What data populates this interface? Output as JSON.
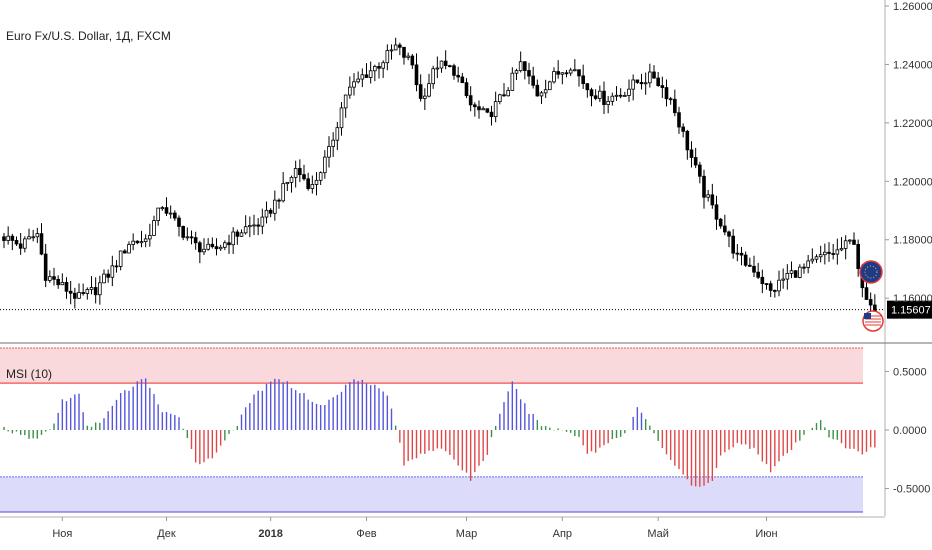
{
  "chart_data": [
    {
      "type": "candlestick",
      "title": "Euro Fx/U.S. Dollar, 1Д, FXCM",
      "ylim": [
        1.145,
        1.26
      ],
      "y_ticks": [
        "1.26000",
        "1.24000",
        "1.22000",
        "1.20000",
        "1.18000",
        "1.16000"
      ],
      "y_tick_values": [
        1.26,
        1.24,
        1.22,
        1.2,
        1.18,
        1.16
      ],
      "last_price": "1.15607",
      "last_price_value": 1.15607,
      "close_path": [
        [
          0,
          1.181
        ],
        [
          4,
          1.178
        ],
        [
          8,
          1.182
        ],
        [
          10,
          1.168
        ],
        [
          14,
          1.164
        ],
        [
          18,
          1.16
        ],
        [
          22,
          1.163
        ],
        [
          26,
          1.17
        ],
        [
          30,
          1.179
        ],
        [
          34,
          1.18
        ],
        [
          38,
          1.192
        ],
        [
          42,
          1.184
        ],
        [
          46,
          1.178
        ],
        [
          50,
          1.176
        ],
        [
          54,
          1.18
        ],
        [
          58,
          1.184
        ],
        [
          62,
          1.186
        ],
        [
          66,
          1.195
        ],
        [
          70,
          1.204
        ],
        [
          74,
          1.198
        ],
        [
          78,
          1.21
        ],
        [
          82,
          1.23
        ],
        [
          86,
          1.236
        ],
        [
          90,
          1.24
        ],
        [
          94,
          1.246
        ],
        [
          98,
          1.24
        ],
        [
          100,
          1.228
        ],
        [
          104,
          1.24
        ],
        [
          108,
          1.238
        ],
        [
          112,
          1.226
        ],
        [
          116,
          1.222
        ],
        [
          120,
          1.23
        ],
        [
          124,
          1.24
        ],
        [
          128,
          1.23
        ],
        [
          132,
          1.236
        ],
        [
          136,
          1.24
        ],
        [
          140,
          1.232
        ],
        [
          144,
          1.228
        ],
        [
          148,
          1.23
        ],
        [
          152,
          1.234
        ],
        [
          156,
          1.236
        ],
        [
          160,
          1.228
        ],
        [
          164,
          1.212
        ],
        [
          168,
          1.196
        ],
        [
          172,
          1.186
        ],
        [
          176,
          1.174
        ],
        [
          180,
          1.17
        ],
        [
          184,
          1.162
        ],
        [
          188,
          1.168
        ],
        [
          192,
          1.17
        ],
        [
          196,
          1.174
        ],
        [
          200,
          1.176
        ],
        [
          204,
          1.18
        ],
        [
          206,
          1.162
        ],
        [
          208,
          1.156
        ]
      ]
    },
    {
      "type": "bar",
      "title": "MSI (10)",
      "ylim": [
        -0.7,
        0.7
      ],
      "y_ticks": [
        "0.5000",
        "0.0000",
        "-0.5000"
      ],
      "y_tick_values": [
        0.5,
        0.0,
        -0.5
      ],
      "bands": [
        {
          "from": 0.4,
          "to": 0.7,
          "color": "#f9d9dc",
          "line_color": "#ef5350"
        },
        {
          "from": -0.7,
          "to": -0.4,
          "color": "#dcdcfa",
          "line_color": "#6a6ae8"
        }
      ],
      "colors": {
        "positive_high": "#5555dd",
        "neutral": "#3a8f4a",
        "negative_high": "#e04848"
      },
      "thresholds": [
        0.1,
        -0.1
      ],
      "path": [
        [
          0,
          0.02
        ],
        [
          4,
          -0.05
        ],
        [
          8,
          -0.08
        ],
        [
          12,
          0.05
        ],
        [
          14,
          0.25
        ],
        [
          18,
          0.3
        ],
        [
          20,
          0.02
        ],
        [
          24,
          0.1
        ],
        [
          28,
          0.3
        ],
        [
          34,
          0.45
        ],
        [
          38,
          0.15
        ],
        [
          42,
          0.1
        ],
        [
          44,
          -0.05
        ],
        [
          46,
          -0.28
        ],
        [
          50,
          -0.25
        ],
        [
          52,
          -0.12
        ],
        [
          56,
          0.05
        ],
        [
          60,
          0.3
        ],
        [
          66,
          0.45
        ],
        [
          72,
          0.3
        ],
        [
          76,
          0.2
        ],
        [
          80,
          0.3
        ],
        [
          84,
          0.45
        ],
        [
          88,
          0.4
        ],
        [
          92,
          0.3
        ],
        [
          94,
          0.05
        ],
        [
          96,
          -0.3
        ],
        [
          100,
          -0.2
        ],
        [
          104,
          -0.15
        ],
        [
          108,
          -0.25
        ],
        [
          112,
          -0.42
        ],
        [
          116,
          -0.2
        ],
        [
          118,
          0.05
        ],
        [
          122,
          0.4
        ],
        [
          126,
          0.15
        ],
        [
          130,
          0.02
        ],
        [
          134,
          0.0
        ],
        [
          138,
          -0.05
        ],
        [
          140,
          -0.2
        ],
        [
          142,
          -0.18
        ],
        [
          146,
          -0.08
        ],
        [
          150,
          0.0
        ],
        [
          152,
          0.2
        ],
        [
          154,
          0.08
        ],
        [
          156,
          -0.02
        ],
        [
          158,
          -0.15
        ],
        [
          162,
          -0.35
        ],
        [
          166,
          -0.5
        ],
        [
          170,
          -0.45
        ],
        [
          172,
          -0.2
        ],
        [
          176,
          -0.12
        ],
        [
          180,
          -0.15
        ],
        [
          184,
          -0.35
        ],
        [
          188,
          -0.2
        ],
        [
          192,
          -0.05
        ],
        [
          196,
          0.1
        ],
        [
          198,
          -0.05
        ],
        [
          202,
          -0.15
        ],
        [
          206,
          -0.2
        ],
        [
          208,
          -0.15
        ]
      ]
    }
  ],
  "x_axis": {
    "labels": [
      "Ноя",
      "Дек",
      "2018",
      "Фев",
      "Мар",
      "Апр",
      "Май",
      "Июн"
    ],
    "positions": [
      14,
      39,
      64,
      87,
      111,
      134,
      157,
      183
    ],
    "n_bars": 210
  }
}
